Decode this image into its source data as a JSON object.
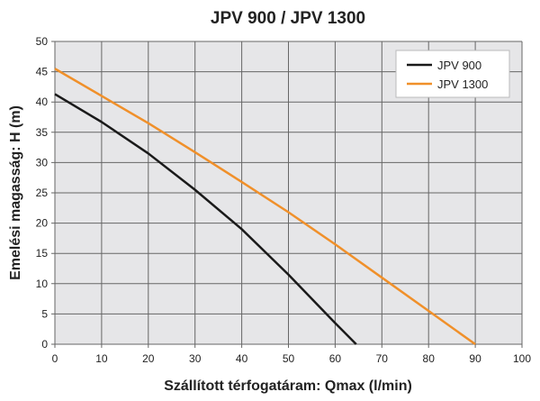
{
  "chart_data": {
    "type": "line",
    "title": "JPV 900 / JPV 1300",
    "xlabel": "Szállított térfogatáram: Qmax (l/min)",
    "ylabel": "Emelési magasság: H (m)",
    "xlim": [
      0,
      100
    ],
    "ylim": [
      0,
      50
    ],
    "xticks": [
      "0",
      "10",
      "20",
      "30",
      "40",
      "50",
      "60",
      "70",
      "80",
      "90",
      "100"
    ],
    "yticks": [
      "0",
      "5",
      "10",
      "15",
      "20",
      "25",
      "30",
      "35",
      "40",
      "45",
      "50"
    ],
    "grid": true,
    "legend_position": "top-right",
    "series": [
      {
        "name": "JPV 900",
        "color": "#1a1a1a",
        "x": [
          0,
          10,
          20,
          30,
          40,
          50,
          60,
          64.5
        ],
        "y": [
          41.3,
          36.7,
          31.5,
          25.5,
          19,
          11.5,
          3.5,
          0
        ]
      },
      {
        "name": "JPV 1300",
        "color": "#f0902a",
        "x": [
          0,
          10,
          20,
          30,
          40,
          50,
          60,
          70,
          80,
          90
        ],
        "y": [
          45.5,
          41,
          36.5,
          31.7,
          26.8,
          21.8,
          16.5,
          11,
          5.5,
          0
        ]
      }
    ],
    "plot_background": "#e6e6e8"
  }
}
